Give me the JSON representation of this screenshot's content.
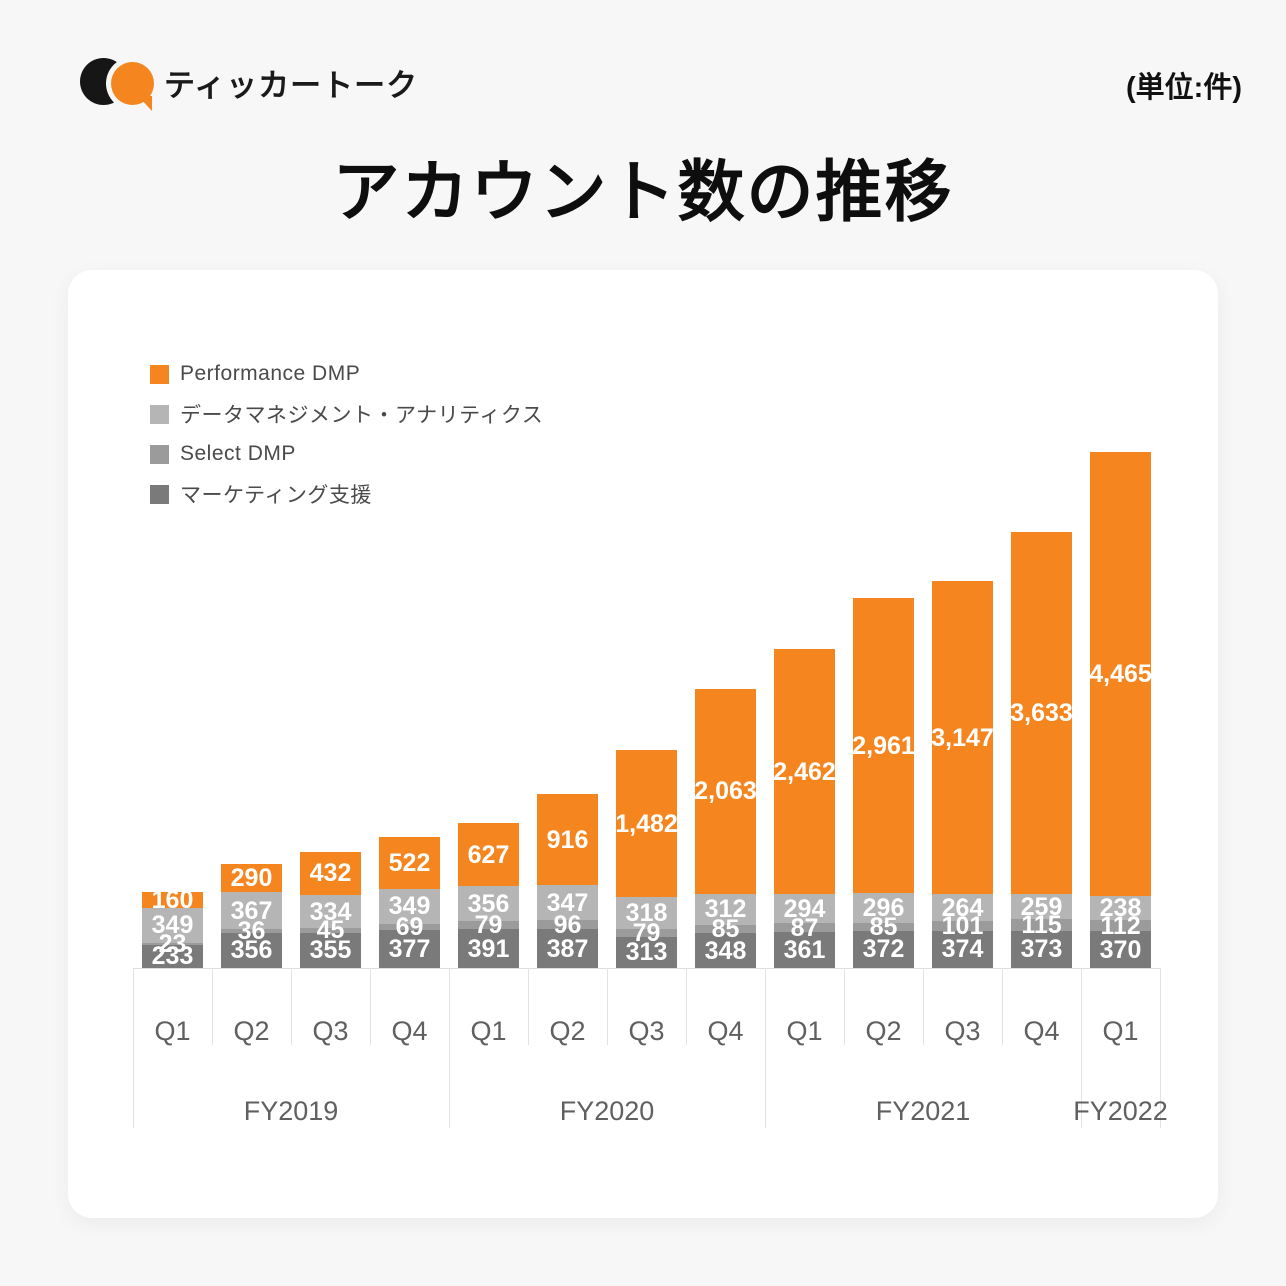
{
  "header": {
    "brand": "ティッカートーク",
    "unit_note": "(単位:件)"
  },
  "title": "アカウント数の推移",
  "chart_data": {
    "type": "bar",
    "stacked": true,
    "unit": "件",
    "title": "アカウント数の推移",
    "ylim": [
      0,
      5185
    ],
    "grid": false,
    "legend_position": "top-left",
    "value_labels": "white, inside each segment, thousands separators",
    "stack_order": "first series on top of stack",
    "legend": [
      {
        "name": "Performance DMP",
        "color": "#F5861F"
      },
      {
        "name": "データマネジメント・アナリティクス",
        "color": "#B5B5B5"
      },
      {
        "name": "Select DMP",
        "color": "#9B9B9B"
      },
      {
        "name": "マーケティング支援",
        "color": "#7A7A7A"
      }
    ],
    "x_axis": {
      "quarters": [
        "Q1",
        "Q2",
        "Q3",
        "Q4",
        "Q1",
        "Q2",
        "Q3",
        "Q4",
        "Q1",
        "Q2",
        "Q3",
        "Q4",
        "Q1"
      ],
      "fiscal_years": [
        {
          "label": "FY2019",
          "quarters": 4
        },
        {
          "label": "FY2020",
          "quarters": 4
        },
        {
          "label": "FY2021",
          "quarters": 4
        },
        {
          "label": "FY2022",
          "quarters": 1
        }
      ]
    },
    "series": [
      {
        "name": "Performance DMP",
        "values": [
          160,
          290,
          432,
          522,
          627,
          916,
          1482,
          2063,
          2462,
          2961,
          3147,
          3633,
          4465
        ]
      },
      {
        "name": "データマネジメント・アナリティクス",
        "values": [
          349,
          367,
          334,
          349,
          356,
          347,
          318,
          312,
          294,
          296,
          264,
          259,
          238
        ]
      },
      {
        "name": "Select DMP",
        "values": [
          23,
          36,
          45,
          69,
          79,
          96,
          79,
          85,
          87,
          85,
          101,
          115,
          112
        ]
      },
      {
        "name": "マーケティング支援",
        "values": [
          233,
          356,
          355,
          377,
          391,
          387,
          313,
          348,
          361,
          372,
          374,
          373,
          370
        ]
      }
    ]
  }
}
